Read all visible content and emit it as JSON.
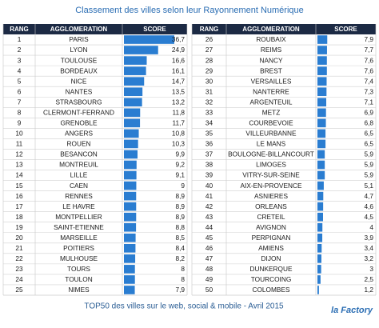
{
  "title": "Classement des villes selon leur Rayonnement Numérique",
  "footer": "TOP50 des villes sur le web, social & mobile - Avril 2015",
  "logo": "la Factory",
  "tables": [
    {
      "header": [
        "RANG",
        "AGGLOMERATION",
        "SCORE"
      ],
      "rows": [
        {
          "rank": 1,
          "city": "PARIS",
          "score": 36.7,
          "score_label": "36,7"
        },
        {
          "rank": 2,
          "city": "LYON",
          "score": 24.9,
          "score_label": "24,9"
        },
        {
          "rank": 3,
          "city": "TOULOUSE",
          "score": 16.6,
          "score_label": "16,6"
        },
        {
          "rank": 4,
          "city": "BORDEAUX",
          "score": 16.1,
          "score_label": "16,1"
        },
        {
          "rank": 5,
          "city": "NICE",
          "score": 14.7,
          "score_label": "14,7"
        },
        {
          "rank": 6,
          "city": "NANTES",
          "score": 13.5,
          "score_label": "13,5"
        },
        {
          "rank": 7,
          "city": "STRASBOURG",
          "score": 13.2,
          "score_label": "13,2"
        },
        {
          "rank": 8,
          "city": "CLERMONT-FERRAND",
          "score": 11.8,
          "score_label": "11,8"
        },
        {
          "rank": 9,
          "city": "GRENOBLE",
          "score": 11.7,
          "score_label": "11,7"
        },
        {
          "rank": 10,
          "city": "ANGERS",
          "score": 10.8,
          "score_label": "10,8"
        },
        {
          "rank": 11,
          "city": "ROUEN",
          "score": 10.3,
          "score_label": "10,3"
        },
        {
          "rank": 12,
          "city": "BESANCON",
          "score": 9.9,
          "score_label": "9,9"
        },
        {
          "rank": 13,
          "city": "MONTREUIL",
          "score": 9.2,
          "score_label": "9,2"
        },
        {
          "rank": 14,
          "city": "LILLE",
          "score": 9.1,
          "score_label": "9,1"
        },
        {
          "rank": 15,
          "city": "CAEN",
          "score": 9,
          "score_label": "9"
        },
        {
          "rank": 16,
          "city": "RENNES",
          "score": 8.9,
          "score_label": "8,9"
        },
        {
          "rank": 17,
          "city": "LE HAVRE",
          "score": 8.9,
          "score_label": "8,9"
        },
        {
          "rank": 18,
          "city": "MONTPELLIER",
          "score": 8.9,
          "score_label": "8,9"
        },
        {
          "rank": 19,
          "city": "SAINT-ETIENNE",
          "score": 8.8,
          "score_label": "8,8"
        },
        {
          "rank": 20,
          "city": "MARSEILLE",
          "score": 8.5,
          "score_label": "8,5"
        },
        {
          "rank": 21,
          "city": "POITIERS",
          "score": 8.4,
          "score_label": "8,4"
        },
        {
          "rank": 22,
          "city": "MULHOUSE",
          "score": 8.2,
          "score_label": "8,2"
        },
        {
          "rank": 23,
          "city": "TOURS",
          "score": 8,
          "score_label": "8"
        },
        {
          "rank": 24,
          "city": "TOULON",
          "score": 8,
          "score_label": "8"
        },
        {
          "rank": 25,
          "city": "NIMES",
          "score": 7.9,
          "score_label": "7,9"
        }
      ]
    },
    {
      "header": [
        "RANG",
        "AGGLOMERATION",
        "SCORE"
      ],
      "rows": [
        {
          "rank": 26,
          "city": "ROUBAIX",
          "score": 7.9,
          "score_label": "7,9"
        },
        {
          "rank": 27,
          "city": "REIMS",
          "score": 7.7,
          "score_label": "7,7"
        },
        {
          "rank": 28,
          "city": "NANCY",
          "score": 7.6,
          "score_label": "7,6"
        },
        {
          "rank": 29,
          "city": "BREST",
          "score": 7.6,
          "score_label": "7,6"
        },
        {
          "rank": 30,
          "city": "VERSAILLES",
          "score": 7.4,
          "score_label": "7,4"
        },
        {
          "rank": 31,
          "city": "NANTERRE",
          "score": 7.3,
          "score_label": "7,3"
        },
        {
          "rank": 32,
          "city": "ARGENTEUIL",
          "score": 7.1,
          "score_label": "7,1"
        },
        {
          "rank": 33,
          "city": "METZ",
          "score": 6.9,
          "score_label": "6,9"
        },
        {
          "rank": 34,
          "city": "COURBEVOIE",
          "score": 6.8,
          "score_label": "6,8"
        },
        {
          "rank": 35,
          "city": "VILLEURBANNE",
          "score": 6.5,
          "score_label": "6,5"
        },
        {
          "rank": 36,
          "city": "LE MANS",
          "score": 6.5,
          "score_label": "6,5"
        },
        {
          "rank": 37,
          "city": "BOULOGNE-BILLANCOURT",
          "score": 5.9,
          "score_label": "5,9"
        },
        {
          "rank": 38,
          "city": "LIMOGES",
          "score": 5.9,
          "score_label": "5,9"
        },
        {
          "rank": 39,
          "city": "VITRY-SUR-SEINE",
          "score": 5.9,
          "score_label": "5,9"
        },
        {
          "rank": 40,
          "city": "AIX-EN-PROVENCE",
          "score": 5.1,
          "score_label": "5,1"
        },
        {
          "rank": 41,
          "city": "ASNIERES",
          "score": 4.7,
          "score_label": "4,7"
        },
        {
          "rank": 42,
          "city": "ORLEANS",
          "score": 4.6,
          "score_label": "4,6"
        },
        {
          "rank": 43,
          "city": "CRETEIL",
          "score": 4.5,
          "score_label": "4,5"
        },
        {
          "rank": 44,
          "city": "AVIGNON",
          "score": 4,
          "score_label": "4"
        },
        {
          "rank": 45,
          "city": "PERPIGNAN",
          "score": 3.9,
          "score_label": "3,9"
        },
        {
          "rank": 46,
          "city": "AMIENS",
          "score": 3.4,
          "score_label": "3,4"
        },
        {
          "rank": 47,
          "city": "DIJON",
          "score": 3.2,
          "score_label": "3,2"
        },
        {
          "rank": 48,
          "city": "DUNKERQUE",
          "score": 3,
          "score_label": "3"
        },
        {
          "rank": 49,
          "city": "TOURCOING",
          "score": 2.5,
          "score_label": "2,5"
        },
        {
          "rank": 50,
          "city": "COLOMBES",
          "score": 1.2,
          "score_label": "1,2"
        }
      ]
    }
  ]
}
